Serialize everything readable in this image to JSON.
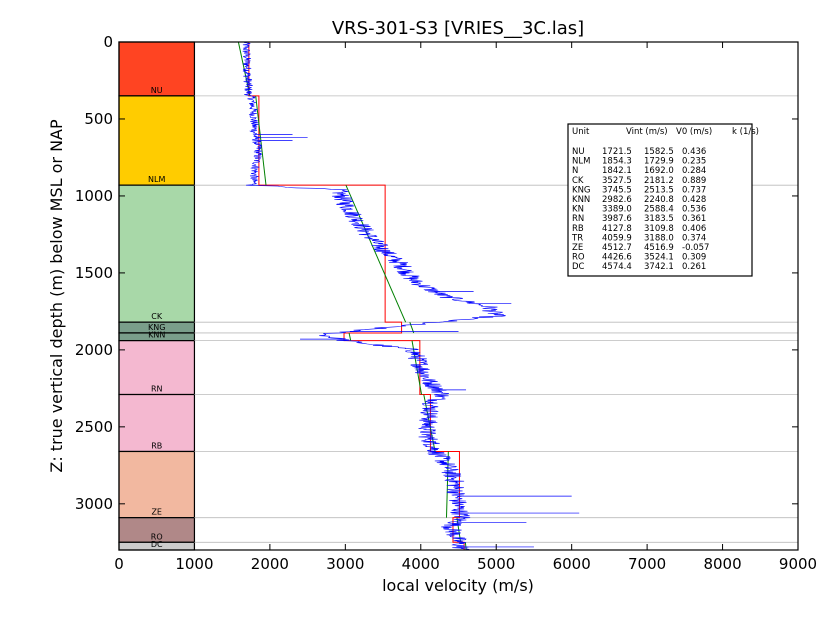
{
  "chart_data": {
    "type": "line",
    "title": "VRS-301-S3 [VRIES__3C.las]",
    "xlabel": "local velocity (m/s)",
    "ylabel": "Z: true vertical depth (m) below MSL or NAP",
    "xlim": [
      0,
      9000
    ],
    "ylim": [
      0,
      3300
    ],
    "y_inverted": true,
    "x_ticks": [
      "0",
      "1000",
      "2000",
      "3000",
      "4000",
      "5000",
      "6000",
      "7000",
      "8000",
      "9000"
    ],
    "y_ticks": [
      "0",
      "500",
      "1000",
      "1500",
      "2000",
      "2500",
      "3000"
    ],
    "grid": "horizontal lines at unit boundaries",
    "colors": {
      "log": "#0000ff",
      "vint": "#ff0000",
      "v0k": "#008000",
      "grid": "#bbbbbb"
    },
    "units": [
      {
        "name": "NU",
        "top": 0,
        "base": 350,
        "color": "#ff4422",
        "vint": 1721.5,
        "v0": 1582.5,
        "k": "0.436"
      },
      {
        "name": "NLM",
        "top": 350,
        "base": 930,
        "color": "#ffcc00",
        "vint": 1854.3,
        "v0": 1729.9,
        "k": "0.235"
      },
      {
        "name": "CK",
        "top": 930,
        "base": 1820,
        "color": "#a8d8a8",
        "vint": 3527.5,
        "v0": 2181.2,
        "k": "0.889"
      },
      {
        "name": "KNG",
        "top": 1820,
        "base": 1890,
        "color": "#7a9e8a",
        "vint": 3745.5,
        "v0": 2513.5,
        "k": "0.737"
      },
      {
        "name": "KNN",
        "top": 1890,
        "base": 1940,
        "color": "#7a9e8a",
        "vint": 2982.6,
        "v0": 2240.8,
        "k": "0.428"
      },
      {
        "name": "RN",
        "top": 1940,
        "base": 2290,
        "color": "#f4b8d0",
        "vint": 3987.6,
        "v0": 3183.5,
        "k": "0.361"
      },
      {
        "name": "RB",
        "top": 2290,
        "base": 2660,
        "color": "#f4b8d0",
        "vint": 4127.8,
        "v0": 3109.8,
        "k": "0.406"
      },
      {
        "name": "ZE",
        "top": 2660,
        "base": 3090,
        "color": "#f2b8a0",
        "vint": 4512.7,
        "v0": 4516.9,
        "k": "-0.057"
      },
      {
        "name": "RO",
        "top": 3090,
        "base": 3250,
        "color": "#b08888",
        "vint": 4426.6,
        "v0": 3524.1,
        "k": "0.309"
      },
      {
        "name": "DC",
        "top": 3250,
        "base": 3300,
        "color": "#cccccc",
        "vint": 4574.4,
        "v0": 3742.1,
        "k": "0.261"
      }
    ],
    "legend": {
      "placement": "top-right",
      "headers": [
        "Unit",
        "Vint (m/s)",
        "V0 (m/s)",
        "k (1/s)"
      ],
      "rows": [
        [
          "NU",
          "1721.5",
          "1582.5",
          "0.436"
        ],
        [
          "NLM",
          "1854.3",
          "1729.9",
          "0.235"
        ],
        [
          "N",
          "1842.1",
          "1692.0",
          "0.284"
        ],
        [
          "CK",
          "3527.5",
          "2181.2",
          "0.889"
        ],
        [
          "KNG",
          "3745.5",
          "2513.5",
          "0.737"
        ],
        [
          "KNN",
          "2982.6",
          "2240.8",
          "0.428"
        ],
        [
          "KN",
          "3389.0",
          "2588.4",
          "0.536"
        ],
        [
          "RN",
          "3987.6",
          "3183.5",
          "0.361"
        ],
        [
          "RB",
          "4127.8",
          "3109.8",
          "0.406"
        ],
        [
          "TR",
          "4059.9",
          "3188.0",
          "0.374"
        ],
        [
          "ZE",
          "4512.7",
          "4516.9",
          "-0.057"
        ],
        [
          "RO",
          "4426.6",
          "3524.1",
          "0.309"
        ],
        [
          "DC",
          "4574.4",
          "3742.1",
          "0.261"
        ]
      ]
    },
    "log_trend": [
      [
        0,
        1680
      ],
      [
        350,
        1720
      ],
      [
        360,
        1760
      ],
      [
        450,
        1780
      ],
      [
        600,
        1800
      ],
      [
        700,
        1850
      ],
      [
        900,
        1780
      ],
      [
        930,
        1800
      ],
      [
        960,
        2900
      ],
      [
        1050,
        3000
      ],
      [
        1150,
        3150
      ],
      [
        1250,
        3300
      ],
      [
        1350,
        3500
      ],
      [
        1450,
        3750
      ],
      [
        1550,
        3900
      ],
      [
        1650,
        4300
      ],
      [
        1720,
        4900
      ],
      [
        1780,
        5000
      ],
      [
        1820,
        4200
      ],
      [
        1850,
        3600
      ],
      [
        1900,
        2700
      ],
      [
        1940,
        3000
      ],
      [
        2000,
        3900
      ],
      [
        2100,
        4000
      ],
      [
        2200,
        4100
      ],
      [
        2290,
        4300
      ],
      [
        2350,
        4150
      ],
      [
        2450,
        4100
      ],
      [
        2550,
        4080
      ],
      [
        2660,
        4200
      ],
      [
        2750,
        4350
      ],
      [
        2850,
        4450
      ],
      [
        2950,
        4480
      ],
      [
        3030,
        4500
      ],
      [
        3090,
        4550
      ],
      [
        3150,
        4400
      ],
      [
        3250,
        4500
      ],
      [
        3300,
        4550
      ]
    ],
    "log_spikes": [
      [
        600,
        2300
      ],
      [
        620,
        2500
      ],
      [
        640,
        2300
      ],
      [
        1620,
        4700
      ],
      [
        1700,
        5200
      ],
      [
        1770,
        5100
      ],
      [
        1880,
        4500
      ],
      [
        1930,
        2400
      ],
      [
        2260,
        4600
      ],
      [
        2950,
        6000
      ],
      [
        3060,
        6100
      ],
      [
        3120,
        5400
      ],
      [
        3280,
        5500
      ]
    ]
  }
}
